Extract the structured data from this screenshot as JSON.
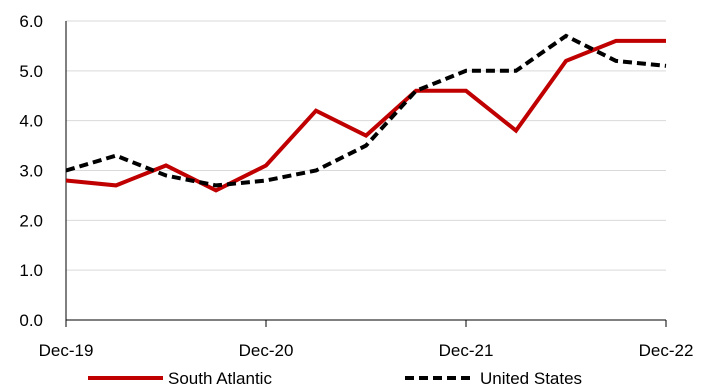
{
  "chart_data": {
    "type": "line",
    "title": "",
    "xlabel": "",
    "ylabel": "",
    "x": [
      "Dec-19",
      "Mar-20",
      "Jun-20",
      "Sep-20",
      "Dec-20",
      "Mar-21",
      "Jun-21",
      "Sep-21",
      "Dec-21",
      "Mar-22",
      "Jun-22",
      "Sep-22",
      "Dec-22"
    ],
    "x_tick_labels": [
      "Dec-19",
      "Dec-20",
      "Dec-21",
      "Dec-22"
    ],
    "ylim": [
      0,
      6
    ],
    "y_ticks": [
      0,
      1,
      2,
      3,
      4,
      5,
      6
    ],
    "y_tick_labels": [
      "0.0",
      "1.0",
      "2.0",
      "3.0",
      "4.0",
      "5.0",
      "6.0"
    ],
    "grid": "horizontal",
    "legend_position": "bottom",
    "series": [
      {
        "name": "South Atlantic",
        "color": "#C00000",
        "style": "solid",
        "values": [
          2.8,
          2.7,
          3.1,
          2.6,
          3.1,
          4.2,
          3.7,
          4.6,
          4.6,
          3.8,
          5.2,
          5.6,
          5.6
        ]
      },
      {
        "name": "United States",
        "color": "#000000",
        "style": "dashed",
        "values": [
          3.0,
          3.3,
          2.9,
          2.7,
          2.8,
          3.0,
          3.5,
          4.6,
          5.0,
          5.0,
          5.7,
          5.2,
          5.1
        ]
      }
    ]
  }
}
